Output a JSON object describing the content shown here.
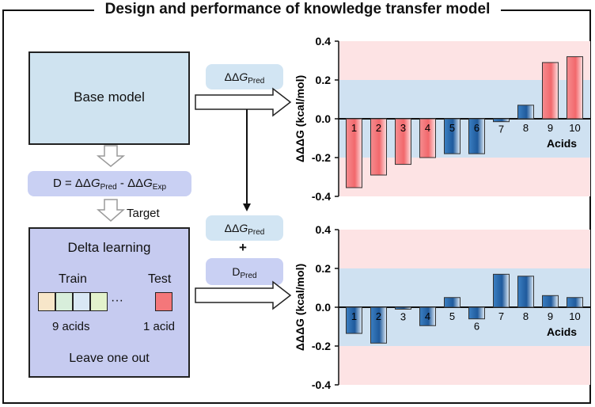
{
  "title": "Design and performance of knowledge transfer model",
  "left": {
    "base_model": "Base model",
    "d_formula": {
      "prefix": "D = ΔΔ",
      "g1": "G",
      "sub1": "Pred",
      "mid": " - ΔΔ",
      "g2": "G",
      "sub2": "Exp"
    },
    "target": "Target",
    "delta_title": "Delta learning",
    "train": "Train",
    "test": "Test",
    "ellipsis": "···",
    "train_count": "9 acids",
    "test_count": "1 acid",
    "leave_one_out": "Leave one out",
    "train_colors": [
      "#f7e6c9",
      "#d8eedb",
      "#d9e8f5",
      "#e3f2cc"
    ],
    "test_color": "#f4777a"
  },
  "middle": {
    "pred1": {
      "prefix": "ΔΔ",
      "g": "G",
      "sub": "Pred"
    },
    "pred2": {
      "prefix": "ΔΔ",
      "g": "G",
      "sub": "Pred"
    },
    "plus": "+",
    "dpred": {
      "main": "D",
      "sub": "Pred"
    }
  },
  "chart_data": [
    {
      "type": "bar",
      "ylabel": "ΔΔΔG (kcal/mol)",
      "xlabel": "Acids",
      "ylim": [
        -0.4,
        0.4
      ],
      "yticks": [
        "0.4",
        "0.2",
        "0.0",
        "-0.2",
        "-0.4"
      ],
      "tick_values": [
        0.4,
        0.2,
        0.0,
        -0.2,
        -0.4
      ],
      "band": [
        -0.2,
        0.2
      ],
      "categories": [
        "1",
        "2",
        "3",
        "4",
        "5",
        "6",
        "7",
        "8",
        "9",
        "10"
      ],
      "values": [
        -0.355,
        -0.29,
        -0.235,
        -0.2,
        -0.18,
        -0.18,
        -0.015,
        0.07,
        0.29,
        0.32
      ],
      "colors": [
        "red",
        "red",
        "red",
        "red",
        "blue",
        "blue",
        "blue",
        "blue",
        "red",
        "red"
      ]
    },
    {
      "type": "bar",
      "ylabel": "ΔΔΔG (kcal/mol)",
      "xlabel": "Acids",
      "ylim": [
        -0.4,
        0.4
      ],
      "yticks": [
        "0.4",
        "0.2",
        "0.0",
        "-0.2",
        "-0.4"
      ],
      "tick_values": [
        0.4,
        0.2,
        0.0,
        -0.2,
        -0.4
      ],
      "band": [
        -0.2,
        0.2
      ],
      "categories": [
        "1",
        "2",
        "3",
        "4",
        "5",
        "6",
        "7",
        "8",
        "9",
        "10"
      ],
      "values": [
        -0.135,
        -0.185,
        -0.01,
        -0.095,
        0.05,
        -0.06,
        0.17,
        0.16,
        0.06,
        0.05
      ],
      "colors": [
        "blue",
        "blue",
        "blue",
        "blue",
        "blue",
        "blue",
        "blue",
        "blue",
        "blue",
        "blue"
      ]
    }
  ],
  "palette": {
    "red_fill": "#f4777a",
    "red_light": "#fce3e4",
    "blue_fill": "#2a6aae",
    "blue_light": "#e9f1f8",
    "pink_bg": "#fde3e4",
    "blue_band": "#cfe1f1"
  }
}
